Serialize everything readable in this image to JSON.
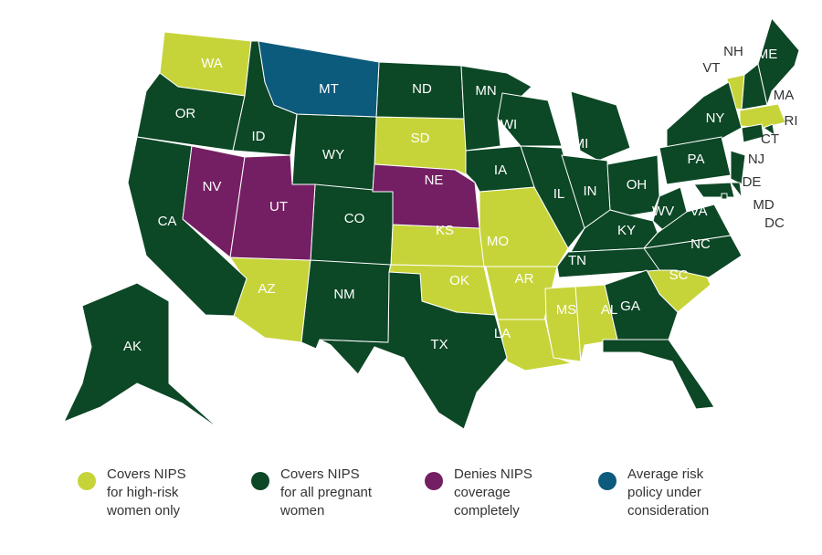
{
  "map": {
    "groups": [
      {
        "color": "#c6d43a",
        "label": [
          "Covers NIPS",
          "for high-risk",
          "women only"
        ],
        "states": [
          "WA",
          "SD",
          "KS",
          "MO",
          "OK",
          "AR",
          "AZ",
          "LA",
          "MS",
          "AL",
          "SC",
          "VT",
          "MA"
        ]
      },
      {
        "color": "#0c4726",
        "label": [
          "Covers NIPS",
          "for all pregnant",
          "women"
        ],
        "states": [
          "OR",
          "CA",
          "ID",
          "WY",
          "ND",
          "MN",
          "WI",
          "MI",
          "IA",
          "IL",
          "IN",
          "OH",
          "KY",
          "TN",
          "WV",
          "VA",
          "NC",
          "GA",
          "FL",
          "TX",
          "NM",
          "CO",
          "NY",
          "PA",
          "NJ",
          "DE",
          "MD",
          "DC",
          "CT",
          "RI",
          "NH",
          "ME",
          "AK"
        ]
      },
      {
        "color": "#741f63",
        "label": [
          "Denies NIPS",
          "coverage",
          "completely"
        ],
        "states": [
          "NV",
          "UT",
          "NE"
        ]
      },
      {
        "color": "#0c5a7c",
        "label": [
          "Average risk",
          "policy under",
          "consideration"
        ],
        "states": [
          "MT"
        ]
      }
    ]
  }
}
